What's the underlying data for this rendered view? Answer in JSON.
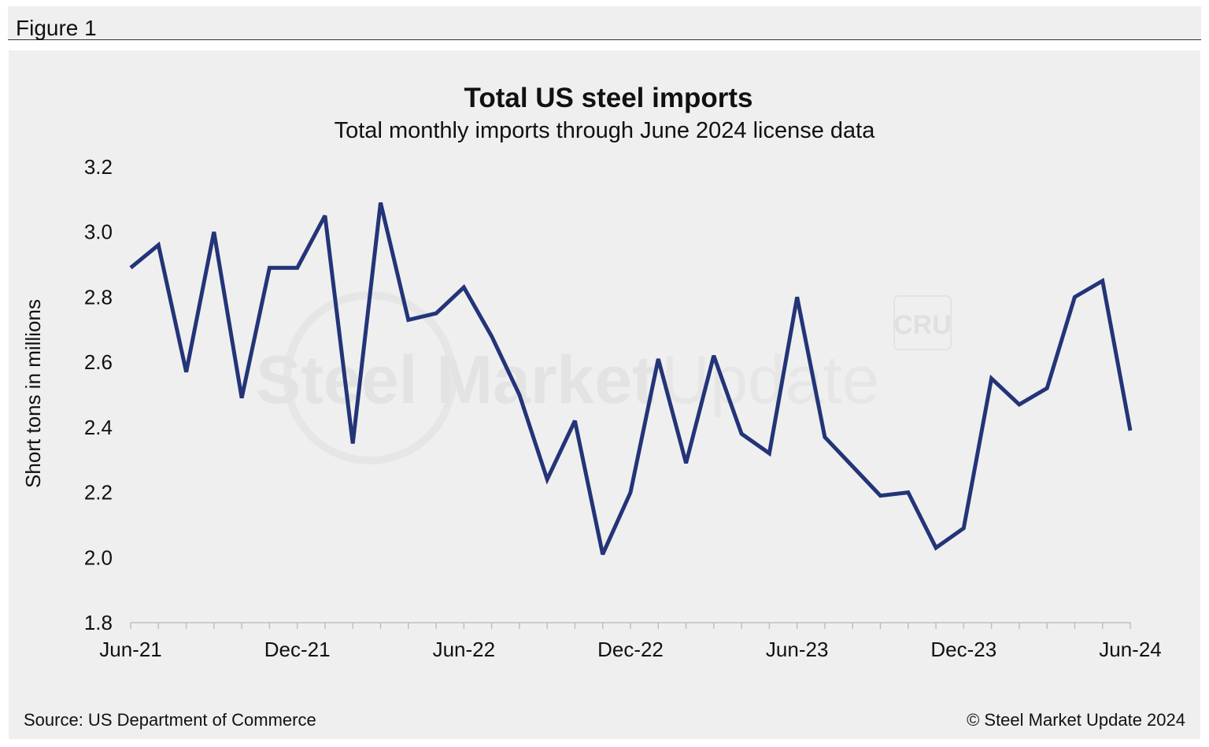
{
  "figure_label": "Figure 1",
  "source_text": "Source: US Department of Commerce",
  "copyright_text": "© Steel Market Update 2024",
  "watermark": {
    "text_bold": "Steel Market",
    "text_light": "Update",
    "logo": "CRU"
  },
  "colors": {
    "line": "#233478",
    "panel": "#efefef",
    "axis": "#bfbfbf",
    "text": "#111111"
  },
  "chart_data": {
    "type": "line",
    "title": "Total US steel imports",
    "subtitle": "Total monthly imports through June 2024 license data",
    "ylabel": "Short tons in millions",
    "xlabel": "",
    "ylim": [
      1.8,
      3.2
    ],
    "yticks": [
      "1.8",
      "2.0",
      "2.2",
      "2.4",
      "2.6",
      "2.8",
      "3.0",
      "3.2"
    ],
    "xtick_labels": [
      {
        "index": 0,
        "label": "Jun-21"
      },
      {
        "index": 6,
        "label": "Dec-21"
      },
      {
        "index": 12,
        "label": "Jun-22"
      },
      {
        "index": 18,
        "label": "Dec-22"
      },
      {
        "index": 24,
        "label": "Jun-23"
      },
      {
        "index": 30,
        "label": "Dec-23"
      },
      {
        "index": 36,
        "label": "Jun-24"
      }
    ],
    "categories": [
      "Jun-21",
      "Jul-21",
      "Aug-21",
      "Sep-21",
      "Oct-21",
      "Nov-21",
      "Dec-21",
      "Jan-22",
      "Feb-22",
      "Mar-22",
      "Apr-22",
      "May-22",
      "Jun-22",
      "Jul-22",
      "Aug-22",
      "Sep-22",
      "Oct-22",
      "Nov-22",
      "Dec-22",
      "Jan-23",
      "Feb-23",
      "Mar-23",
      "Apr-23",
      "May-23",
      "Jun-23",
      "Jul-23",
      "Aug-23",
      "Sep-23",
      "Oct-23",
      "Nov-23",
      "Dec-23",
      "Jan-24",
      "Feb-24",
      "Mar-24",
      "Apr-24",
      "May-24",
      "Jun-24"
    ],
    "series": [
      {
        "name": "Total US steel imports",
        "values": [
          2.89,
          2.96,
          2.57,
          3.0,
          2.49,
          2.89,
          2.89,
          3.05,
          2.35,
          3.09,
          2.73,
          2.75,
          2.83,
          2.68,
          2.5,
          2.24,
          2.42,
          2.01,
          2.2,
          2.61,
          2.29,
          2.62,
          2.38,
          2.32,
          2.8,
          2.37,
          2.28,
          2.19,
          2.2,
          2.03,
          2.09,
          2.55,
          2.47,
          2.52,
          2.8,
          2.85,
          2.39
        ]
      }
    ]
  }
}
